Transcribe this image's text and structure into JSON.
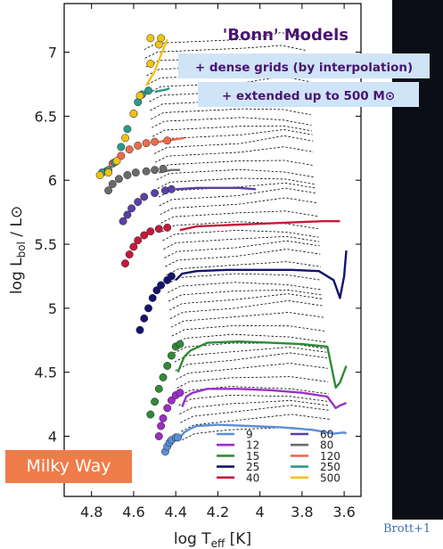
{
  "chart_data": {
    "type": "line",
    "title": "'Bonn' Models",
    "annotations": [
      "+ dense grids (by interpolation)",
      "+ extended up to 500 M⊙"
    ],
    "xlabel": "log T",
    "xlabel_sub": "eff",
    "xlabel_unit": "[K]",
    "ylabel": "log L",
    "ylabel_sub": "bol",
    "ylabel_tail": " / L⊙",
    "x_reversed": true,
    "xlim": [
      4.93,
      3.52
    ],
    "ylim": [
      3.53,
      7.38
    ],
    "xticks": [
      "4.8",
      "4.6",
      "4.4",
      "4.2",
      "4",
      "3.8",
      "3.6"
    ],
    "xtick_values": [
      4.8,
      4.6,
      4.4,
      4.2,
      4.0,
      3.8,
      3.6
    ],
    "yticks": [
      "4",
      "4.5",
      "5",
      "5.5",
      "6",
      "6.5",
      "7"
    ],
    "ytick_values": [
      4.0,
      4.5,
      5.0,
      5.5,
      6.0,
      6.5,
      7.0
    ],
    "grid": false,
    "legend_position": "bottom-right",
    "legend_columns": 2,
    "series": [
      {
        "name": "9",
        "color": "#5b8fd6",
        "track": [
          [
            4.38,
            3.99
          ],
          [
            4.36,
            4.03
          ],
          [
            4.33,
            4.06
          ],
          [
            4.3,
            4.08
          ],
          [
            4.2,
            4.09
          ],
          [
            4.05,
            4.08
          ],
          [
            3.9,
            4.07
          ],
          [
            3.75,
            4.05
          ],
          [
            3.65,
            4.02
          ],
          [
            3.6,
            4.03
          ],
          [
            3.59,
            4.02
          ]
        ],
        "dots": [
          [
            4.45,
            3.88
          ],
          [
            4.44,
            3.92
          ],
          [
            4.43,
            3.95
          ],
          [
            4.42,
            3.97
          ],
          [
            4.4,
            3.99
          ],
          [
            4.39,
            3.99
          ]
        ]
      },
      {
        "name": "12",
        "color": "#9b2ec4",
        "track": [
          [
            4.37,
            4.23
          ],
          [
            4.35,
            4.31
          ],
          [
            4.32,
            4.34
          ],
          [
            4.25,
            4.37
          ],
          [
            4.1,
            4.37
          ],
          [
            3.95,
            4.36
          ],
          [
            3.8,
            4.34
          ],
          [
            3.68,
            4.31
          ],
          [
            3.64,
            4.22
          ],
          [
            3.62,
            4.24
          ],
          [
            3.59,
            4.26
          ]
        ],
        "dots": [
          [
            4.48,
            4.0
          ],
          [
            4.47,
            4.08
          ],
          [
            4.46,
            4.14
          ],
          [
            4.44,
            4.22
          ],
          [
            4.42,
            4.28
          ],
          [
            4.4,
            4.32
          ],
          [
            4.38,
            4.34
          ]
        ]
      },
      {
        "name": "15",
        "color": "#2e8b37",
        "track": [
          [
            4.39,
            4.5
          ],
          [
            4.36,
            4.62
          ],
          [
            4.33,
            4.67
          ],
          [
            4.25,
            4.73
          ],
          [
            4.1,
            4.74
          ],
          [
            3.95,
            4.73
          ],
          [
            3.8,
            4.72
          ],
          [
            3.68,
            4.7
          ],
          [
            3.64,
            4.38
          ],
          [
            3.62,
            4.42
          ],
          [
            3.59,
            4.55
          ]
        ],
        "dots": [
          [
            4.52,
            4.17
          ],
          [
            4.5,
            4.27
          ],
          [
            4.48,
            4.37
          ],
          [
            4.46,
            4.46
          ],
          [
            4.44,
            4.55
          ],
          [
            4.42,
            4.63
          ],
          [
            4.4,
            4.7
          ],
          [
            4.38,
            4.72
          ]
        ]
      },
      {
        "name": "25",
        "color": "#14146e",
        "track": [
          [
            4.4,
            5.22
          ],
          [
            4.37,
            5.27
          ],
          [
            4.3,
            5.29
          ],
          [
            4.15,
            5.3
          ],
          [
            4.0,
            5.3
          ],
          [
            3.85,
            5.3
          ],
          [
            3.72,
            5.29
          ],
          [
            3.65,
            5.22
          ],
          [
            3.62,
            5.08
          ],
          [
            3.6,
            5.25
          ],
          [
            3.59,
            5.45
          ]
        ],
        "dots": [
          [
            4.57,
            4.83
          ],
          [
            4.55,
            4.92
          ],
          [
            4.53,
            5.0
          ],
          [
            4.51,
            5.08
          ],
          [
            4.49,
            5.14
          ],
          [
            4.47,
            5.18
          ],
          [
            4.44,
            5.22
          ],
          [
            4.42,
            5.25
          ]
        ]
      },
      {
        "name": "40",
        "color": "#c51a3a",
        "track": [
          [
            4.38,
            5.61
          ],
          [
            4.3,
            5.64
          ],
          [
            4.15,
            5.65
          ],
          [
            4.0,
            5.66
          ],
          [
            3.85,
            5.67
          ],
          [
            3.7,
            5.68
          ],
          [
            3.62,
            5.68
          ]
        ],
        "dots": [
          [
            4.64,
            5.35
          ],
          [
            4.62,
            5.42
          ],
          [
            4.6,
            5.48
          ],
          [
            4.58,
            5.53
          ],
          [
            4.55,
            5.57
          ],
          [
            4.52,
            5.6
          ],
          [
            4.48,
            5.62
          ],
          [
            4.44,
            5.63
          ]
        ]
      },
      {
        "name": "60",
        "color": "#5a3fa8",
        "track": [
          [
            4.4,
            5.93
          ],
          [
            4.3,
            5.94
          ],
          [
            4.2,
            5.94
          ],
          [
            4.1,
            5.94
          ],
          [
            4.02,
            5.93
          ]
        ],
        "dots": [
          [
            4.65,
            5.68
          ],
          [
            4.63,
            5.73
          ],
          [
            4.61,
            5.78
          ],
          [
            4.58,
            5.83
          ],
          [
            4.55,
            5.87
          ],
          [
            4.5,
            5.9
          ],
          [
            4.45,
            5.92
          ],
          [
            4.42,
            5.93
          ]
        ]
      },
      {
        "name": "80",
        "color": "#6b6b6b",
        "track": [
          [
            4.48,
            6.06
          ],
          [
            4.42,
            6.08
          ],
          [
            4.38,
            6.08
          ]
        ],
        "dots": [
          [
            4.72,
            5.92
          ],
          [
            4.7,
            5.97
          ],
          [
            4.67,
            6.01
          ],
          [
            4.63,
            6.04
          ],
          [
            4.59,
            6.06
          ],
          [
            4.54,
            6.07
          ],
          [
            4.5,
            6.08
          ],
          [
            4.46,
            6.09
          ]
        ]
      },
      {
        "name": "120",
        "color": "#ef6a4d",
        "track": [
          [
            4.48,
            6.3
          ],
          [
            4.4,
            6.32
          ],
          [
            4.36,
            6.33
          ]
        ],
        "dots": [
          [
            4.73,
            6.07
          ],
          [
            4.7,
            6.13
          ],
          [
            4.66,
            6.19
          ],
          [
            4.62,
            6.24
          ],
          [
            4.58,
            6.27
          ],
          [
            4.54,
            6.29
          ],
          [
            4.5,
            6.3
          ],
          [
            4.44,
            6.31
          ]
        ]
      },
      {
        "name": "250",
        "color": "#2a9a8a",
        "track": [
          [
            4.5,
            6.69
          ],
          [
            4.44,
            6.71
          ],
          [
            4.43,
            6.72
          ]
        ],
        "dots": [
          [
            4.75,
            6.06
          ],
          [
            4.72,
            6.08
          ],
          [
            4.69,
            6.14
          ],
          [
            4.66,
            6.26
          ],
          [
            4.63,
            6.4
          ],
          [
            4.6,
            6.52
          ],
          [
            4.58,
            6.61
          ],
          [
            4.56,
            6.67
          ],
          [
            4.53,
            6.7
          ]
        ]
      },
      {
        "name": "500",
        "color": "#f2c214",
        "track": [
          [
            4.54,
            6.74
          ],
          [
            4.5,
            6.85
          ],
          [
            4.47,
            6.98
          ],
          [
            4.45,
            7.06
          ],
          [
            4.44,
            7.1
          ]
        ],
        "dots": [
          [
            4.76,
            6.04
          ],
          [
            4.72,
            6.06
          ],
          [
            4.68,
            6.15
          ],
          [
            4.64,
            6.33
          ],
          [
            4.6,
            6.52
          ],
          [
            4.57,
            6.66
          ],
          [
            4.52,
            6.91
          ],
          [
            4.48,
            7.06
          ],
          [
            4.52,
            7.11
          ],
          [
            4.47,
            7.11
          ]
        ]
      }
    ]
  },
  "panel": {
    "label": "Milky Way"
  },
  "credit": "Brott+1"
}
